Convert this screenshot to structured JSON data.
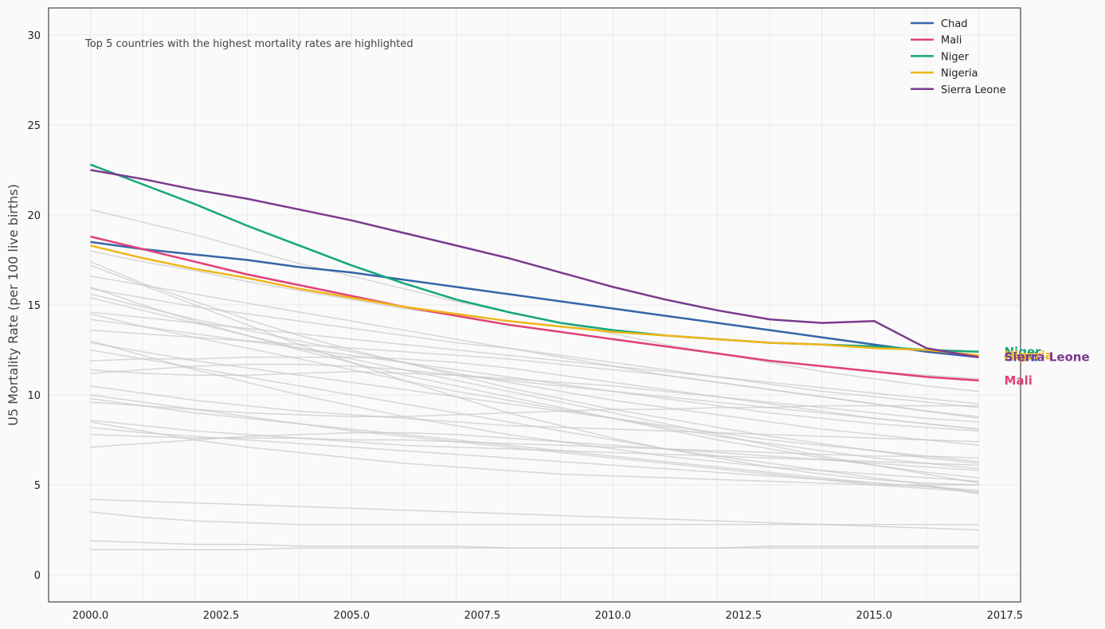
{
  "chart_data": {
    "type": "line",
    "title": "",
    "xlabel": "",
    "ylabel": "U5 Mortality Rate (per 100 live births)",
    "annotation": "Top 5 countries with the highest mortality rates are highlighted",
    "xlim": [
      1999.2,
      2017.8
    ],
    "ylim": [
      -1.5,
      31.5
    ],
    "x_ticks": [
      "2000.0",
      "2002.5",
      "2005.0",
      "2007.5",
      "2010.0",
      "2012.5",
      "2015.0",
      "2017.5"
    ],
    "y_ticks": [
      "0",
      "5",
      "10",
      "15",
      "20",
      "25",
      "30"
    ],
    "grid": true,
    "legend_position": "top-right",
    "x": [
      2000,
      2001,
      2002,
      2003,
      2004,
      2005,
      2006,
      2007,
      2008,
      2009,
      2010,
      2011,
      2012,
      2013,
      2014,
      2015,
      2016,
      2017
    ],
    "highlighted_series": [
      {
        "name": "Chad",
        "color": "#3465a8",
        "end_label": "Chad",
        "values": [
          18.5,
          18.1,
          17.8,
          17.5,
          17.1,
          16.8,
          16.4,
          16.0,
          15.6,
          15.2,
          14.8,
          14.4,
          14.0,
          13.6,
          13.2,
          12.8,
          12.4,
          12.1
        ]
      },
      {
        "name": "Mali",
        "color": "#e0417a",
        "end_label": "Mali",
        "values": [
          18.8,
          18.1,
          17.4,
          16.7,
          16.1,
          15.5,
          14.9,
          14.4,
          13.9,
          13.5,
          13.1,
          12.7,
          12.3,
          11.9,
          11.6,
          11.3,
          11.0,
          10.8
        ]
      },
      {
        "name": "Niger",
        "color": "#14a67a",
        "end_label": "Niger",
        "values": [
          22.8,
          21.7,
          20.6,
          19.4,
          18.3,
          17.2,
          16.2,
          15.3,
          14.6,
          14.0,
          13.6,
          13.3,
          13.1,
          12.9,
          12.8,
          12.7,
          12.5,
          12.4
        ]
      },
      {
        "name": "Nigeria",
        "color": "#f0b51a",
        "end_label": "Nigeria",
        "values": [
          18.3,
          17.6,
          17.0,
          16.5,
          15.9,
          15.4,
          14.9,
          14.5,
          14.1,
          13.8,
          13.5,
          13.3,
          13.1,
          12.9,
          12.8,
          12.6,
          12.5,
          12.2
        ]
      },
      {
        "name": "Sierra Leone",
        "color": "#7b3a8f",
        "end_label": "Sierra Leone",
        "values": [
          22.5,
          22.0,
          21.4,
          20.9,
          20.3,
          19.7,
          19.0,
          18.3,
          17.6,
          16.8,
          16.0,
          15.3,
          14.7,
          14.2,
          14.0,
          14.1,
          12.6,
          12.1
        ]
      }
    ],
    "background_series": [
      {
        "values": [
          20.3,
          19.6,
          18.9,
          18.1,
          17.3,
          16.6,
          15.9,
          15.2,
          14.6,
          14.0,
          13.4,
          12.8,
          12.3,
          11.8,
          11.3,
          10.9,
          10.5,
          10.2
        ]
      },
      {
        "values": [
          18.0,
          17.4,
          16.9,
          16.3,
          15.8,
          15.3,
          14.8,
          14.4,
          13.9,
          13.5,
          13.1,
          12.7,
          12.3,
          11.9,
          11.6,
          11.3,
          11.1,
          10.9
        ]
      },
      {
        "values": [
          17.4,
          16.2,
          15.2,
          14.2,
          13.3,
          12.5,
          11.8,
          11.1,
          10.4,
          9.8,
          9.2,
          8.7,
          8.2,
          7.7,
          7.3,
          6.9,
          6.5,
          6.2
        ]
      },
      {
        "values": [
          17.2,
          16.1,
          15.0,
          13.9,
          12.8,
          11.8,
          10.8,
          9.9,
          9.0,
          8.3,
          7.6,
          7.0,
          6.5,
          6.0,
          5.6,
          5.3,
          5.1,
          5.0
        ]
      },
      {
        "values": [
          16.6,
          16.1,
          15.6,
          15.1,
          14.6,
          14.1,
          13.6,
          13.1,
          12.6,
          12.1,
          11.6,
          11.1,
          10.7,
          10.3,
          9.9,
          9.5,
          9.1,
          8.8
        ]
      },
      {
        "values": [
          15.9,
          15.4,
          14.9,
          14.5,
          14.1,
          13.7,
          13.3,
          12.9,
          12.6,
          12.2,
          11.8,
          11.4,
          11.0,
          10.6,
          10.2,
          9.9,
          9.6,
          9.3
        ]
      },
      {
        "values": [
          15.6,
          14.9,
          14.2,
          13.6,
          13.0,
          12.4,
          11.8,
          11.2,
          10.7,
          10.2,
          9.7,
          9.3,
          8.9,
          8.5,
          8.1,
          7.8,
          7.5,
          7.2
        ]
      },
      {
        "values": [
          15.4,
          14.7,
          14.0,
          13.3,
          12.6,
          12.0,
          11.4,
          10.8,
          10.2,
          9.6,
          9.0,
          8.4,
          7.8,
          7.2,
          6.6,
          6.1,
          5.6,
          5.1
        ]
      },
      {
        "values": [
          14.6,
          14.3,
          14.0,
          13.7,
          13.4,
          13.1,
          12.8,
          12.5,
          12.2,
          11.9,
          11.6,
          11.3,
          11.0,
          10.7,
          10.4,
          10.1,
          9.8,
          9.5
        ]
      },
      {
        "values": [
          14.2,
          13.8,
          13.4,
          13.0,
          12.6,
          12.2,
          11.8,
          11.4,
          11.0,
          10.6,
          10.2,
          9.8,
          9.4,
          9.0,
          8.7,
          8.4,
          8.2,
          8.0
        ]
      },
      {
        "values": [
          13.6,
          13.4,
          13.2,
          13.0,
          12.8,
          12.6,
          12.4,
          12.2,
          12.0,
          11.7,
          11.4,
          11.1,
          10.7,
          10.3,
          9.9,
          9.5,
          9.1,
          8.7
        ]
      },
      {
        "values": [
          13.0,
          12.2,
          11.4,
          10.7,
          10.0,
          9.4,
          8.8,
          8.3,
          7.8,
          7.4,
          7.0,
          6.6,
          6.3,
          6.0,
          5.8,
          5.6,
          5.4,
          5.2
        ]
      },
      {
        "values": [
          12.9,
          12.4,
          11.9,
          11.5,
          11.1,
          10.7,
          10.3,
          9.9,
          9.5,
          9.1,
          8.7,
          8.3,
          7.9,
          7.5,
          7.2,
          6.9,
          6.6,
          6.3
        ]
      },
      {
        "values": [
          11.9,
          12.0,
          12.0,
          12.1,
          12.1,
          12.1,
          12.0,
          11.8,
          11.5,
          11.1,
          10.7,
          10.3,
          9.9,
          9.5,
          9.1,
          8.7,
          8.4,
          8.1
        ]
      },
      {
        "values": [
          11.4,
          11.2,
          11.1,
          11.1,
          11.2,
          11.3,
          11.2,
          11.1,
          10.9,
          10.7,
          10.5,
          10.2,
          9.9,
          9.6,
          9.3,
          9.0,
          8.7,
          8.5
        ]
      },
      {
        "values": [
          11.2,
          11.4,
          11.6,
          11.7,
          11.7,
          11.6,
          11.4,
          11.1,
          10.8,
          10.5,
          10.2,
          9.9,
          9.6,
          9.3,
          9.0,
          8.7,
          8.4,
          8.1
        ]
      },
      {
        "values": [
          10.5,
          10.1,
          9.7,
          9.4,
          9.1,
          8.9,
          8.7,
          8.5,
          8.3,
          8.2,
          8.1,
          8.0,
          7.9,
          7.8,
          7.7,
          7.6,
          7.5,
          7.4
        ]
      },
      {
        "values": [
          10.0,
          9.6,
          9.2,
          8.8,
          8.4,
          8.0,
          7.7,
          7.4,
          7.1,
          6.8,
          6.5,
          6.2,
          5.9,
          5.6,
          5.3,
          5.0,
          4.8,
          4.6
        ]
      },
      {
        "values": [
          9.8,
          9.4,
          9.0,
          8.7,
          8.4,
          8.1,
          7.8,
          7.5,
          7.2,
          6.9,
          6.6,
          6.3,
          6.0,
          5.7,
          5.4,
          5.1,
          4.9,
          4.7
        ]
      },
      {
        "values": [
          9.6,
          9.4,
          9.2,
          9.0,
          8.9,
          8.8,
          8.8,
          8.9,
          9.0,
          9.1,
          9.2,
          9.2,
          9.3,
          9.3,
          9.4,
          9.4,
          9.4,
          9.4
        ]
      },
      {
        "values": [
          8.6,
          8.3,
          8.0,
          7.8,
          7.6,
          7.4,
          7.2,
          7.1,
          7.0,
          6.9,
          6.8,
          6.7,
          6.6,
          6.5,
          6.4,
          6.3,
          6.2,
          6.1
        ]
      },
      {
        "values": [
          8.5,
          8.0,
          7.5,
          7.1,
          6.8,
          6.5,
          6.2,
          6.0,
          5.8,
          5.6,
          5.5,
          5.4,
          5.3,
          5.2,
          5.1,
          5.0,
          5.0,
          5.0
        ]
      },
      {
        "values": [
          8.2,
          7.9,
          7.7,
          7.5,
          7.3,
          7.1,
          6.9,
          6.7,
          6.5,
          6.3,
          6.1,
          5.9,
          5.7,
          5.5,
          5.3,
          5.1,
          4.9,
          4.6
        ]
      },
      {
        "values": [
          7.8,
          7.7,
          7.6,
          7.6,
          7.6,
          7.5,
          7.5,
          7.4,
          7.3,
          7.2,
          7.1,
          7.0,
          6.9,
          6.8,
          6.7,
          6.6,
          6.6,
          6.5
        ]
      },
      {
        "values": [
          7.1,
          7.3,
          7.5,
          7.7,
          7.8,
          7.9,
          7.9,
          7.8,
          7.6,
          7.4,
          7.2,
          7.0,
          6.8,
          6.6,
          6.4,
          6.2,
          6.0,
          5.8
        ]
      },
      {
        "values": [
          4.2,
          4.1,
          4.0,
          3.9,
          3.8,
          3.7,
          3.6,
          3.5,
          3.4,
          3.3,
          3.2,
          3.1,
          3.0,
          2.9,
          2.8,
          2.7,
          2.6,
          2.5
        ]
      },
      {
        "values": [
          3.5,
          3.2,
          3.0,
          2.9,
          2.8,
          2.8,
          2.8,
          2.8,
          2.8,
          2.8,
          2.8,
          2.8,
          2.8,
          2.8,
          2.8,
          2.8,
          2.8,
          2.8
        ]
      },
      {
        "values": [
          1.9,
          1.8,
          1.7,
          1.7,
          1.6,
          1.6,
          1.6,
          1.6,
          1.5,
          1.5,
          1.5,
          1.5,
          1.5,
          1.5,
          1.5,
          1.5,
          1.5,
          1.5
        ]
      },
      {
        "values": [
          1.4,
          1.4,
          1.4,
          1.4,
          1.5,
          1.5,
          1.5,
          1.5,
          1.5,
          1.5,
          1.5,
          1.5,
          1.5,
          1.6,
          1.6,
          1.6,
          1.6,
          1.6
        ]
      },
      {
        "values": [
          16.0,
          15.0,
          14.1,
          13.3,
          12.5,
          11.8,
          11.1,
          10.5,
          9.9,
          9.3,
          8.7,
          8.1,
          7.5,
          7.0,
          6.5,
          6.1,
          5.7,
          5.4
        ]
      },
      {
        "values": [
          14.5,
          13.8,
          13.2,
          12.6,
          12.0,
          11.4,
          10.8,
          10.2,
          9.7,
          9.2,
          8.7,
          8.2,
          7.7,
          7.3,
          6.9,
          6.5,
          6.2,
          5.9
        ]
      },
      {
        "values": [
          12.5,
          12.0,
          11.5,
          11.0,
          10.5,
          10.0,
          9.5,
          9.0,
          8.5,
          8.0,
          7.5,
          7.0,
          6.6,
          6.2,
          5.8,
          5.4,
          5.0,
          4.5
        ]
      }
    ]
  }
}
